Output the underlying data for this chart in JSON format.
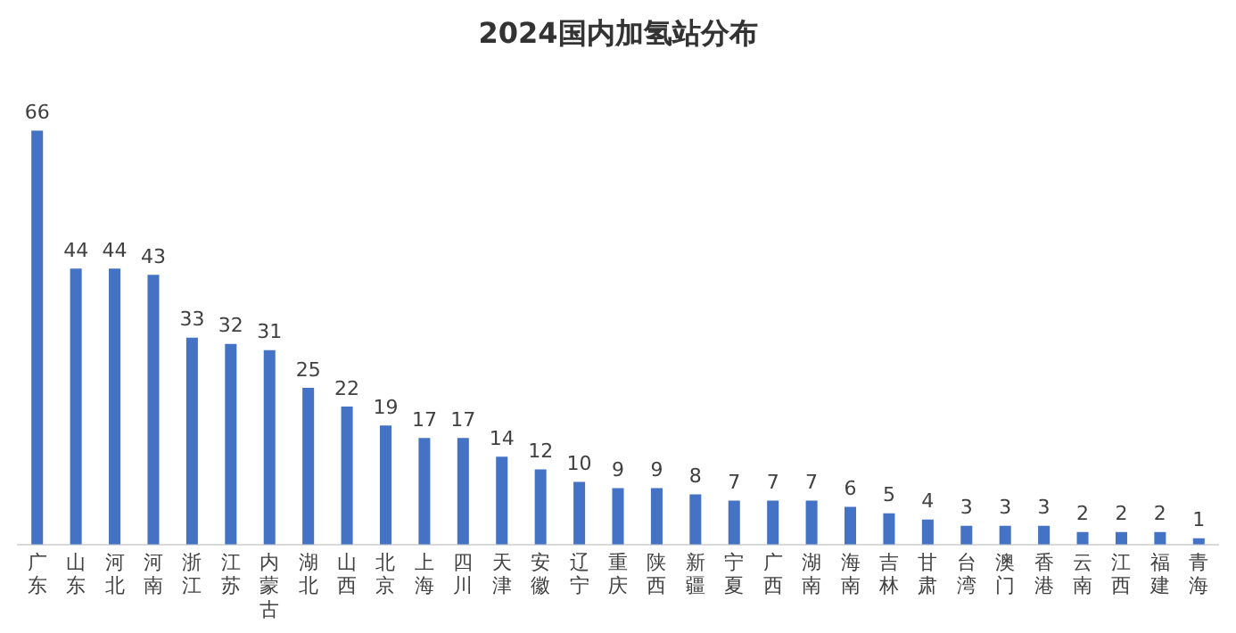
{
  "chart_data": {
    "type": "bar",
    "title": "2024国内加氢站分布",
    "categories": [
      "广东",
      "山东",
      "河北",
      "河南",
      "浙江",
      "江苏",
      "内蒙古",
      "湖北",
      "山西",
      "北京",
      "上海",
      "四川",
      "天津",
      "安徽",
      "辽宁",
      "重庆",
      "陕西",
      "新疆",
      "宁夏",
      "广西",
      "湖南",
      "海南",
      "吉林",
      "甘肃",
      "台湾",
      "澳门",
      "香港",
      "云南",
      "江西",
      "福建",
      "青海"
    ],
    "values": [
      66,
      44,
      44,
      43,
      33,
      32,
      31,
      25,
      22,
      19,
      17,
      17,
      14,
      12,
      10,
      9,
      9,
      8,
      7,
      7,
      7,
      6,
      5,
      4,
      3,
      3,
      3,
      2,
      2,
      2,
      1
    ],
    "color": "#4472c4",
    "data_labels": true,
    "grid": false,
    "legend": false
  }
}
